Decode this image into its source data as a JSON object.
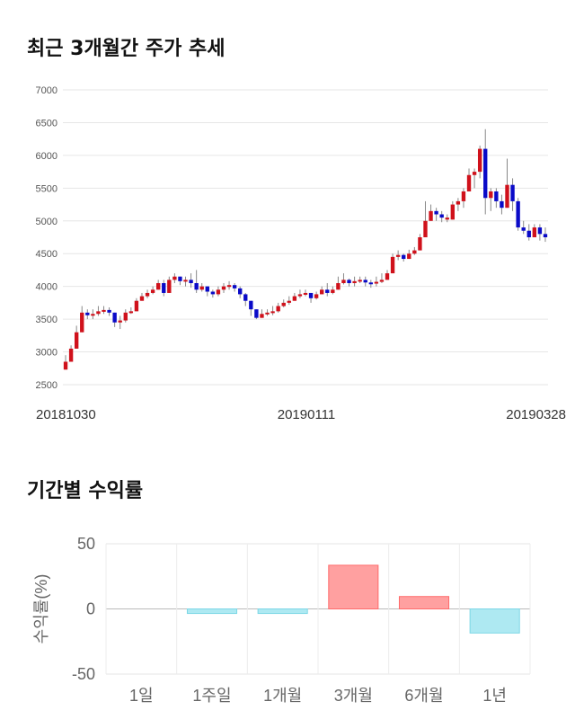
{
  "sections": {
    "price_trend_title": "최근 3개월간 주가 추세",
    "returns_title": "기간별 수익률"
  },
  "chart_data": [
    {
      "type": "candlestick",
      "title": "최근 3개월간 주가 추세",
      "ylim": [
        2500,
        7000
      ],
      "y_ticks": [
        7000,
        6500,
        6000,
        5500,
        5000,
        4500,
        4000,
        3500,
        3000,
        2500
      ],
      "x_labels": [
        "20181030",
        "20190111",
        "20190328"
      ],
      "grid": true,
      "colors": {
        "up": "#d0111b",
        "down": "#0a0ac8",
        "wick": "#888888",
        "grid": "#e6e6e6"
      },
      "close": [
        2850,
        3050,
        3300,
        3600,
        3560,
        3580,
        3620,
        3640,
        3600,
        3450,
        3480,
        3600,
        3620,
        3780,
        3850,
        3900,
        3950,
        4050,
        3900,
        4100,
        4150,
        4080,
        4100,
        4050,
        3950,
        4000,
        3920,
        3880,
        3950,
        4000,
        4020,
        3970,
        3880,
        3780,
        3650,
        3520,
        3580,
        3600,
        3620,
        3700,
        3750,
        3780,
        3850,
        3880,
        3900,
        3820,
        3880,
        3950,
        3900,
        3950,
        4050,
        4100,
        4050,
        4080,
        4100,
        4060,
        4050,
        4070,
        4100,
        4200,
        4450,
        4480,
        4420,
        4500,
        4550,
        4750,
        5000,
        5150,
        5100,
        5050,
        5020,
        5250,
        5300,
        5450,
        5700,
        5750,
        6100,
        5350,
        5450,
        5300,
        5200,
        5550,
        5300,
        4900,
        4850,
        4750,
        4900,
        4800,
        4750
      ],
      "up": [
        true,
        true,
        true,
        true,
        false,
        true,
        true,
        true,
        false,
        false,
        true,
        true,
        true,
        true,
        true,
        true,
        true,
        true,
        false,
        true,
        true,
        false,
        true,
        false,
        false,
        true,
        false,
        false,
        true,
        true,
        true,
        false,
        false,
        false,
        false,
        false,
        true,
        true,
        true,
        true,
        true,
        true,
        true,
        true,
        true,
        false,
        true,
        true,
        false,
        true,
        true,
        true,
        false,
        true,
        true,
        false,
        false,
        true,
        true,
        true,
        true,
        true,
        false,
        true,
        true,
        true,
        true,
        true,
        false,
        false,
        true,
        true,
        true,
        true,
        true,
        true,
        true,
        false,
        true,
        false,
        false,
        true,
        false,
        false,
        false,
        false,
        true,
        false,
        false
      ],
      "wick_high": [
        2950,
        3100,
        3400,
        3700,
        3650,
        3650,
        3700,
        3700,
        3680,
        3600,
        3550,
        3650,
        3680,
        3820,
        3900,
        3950,
        4000,
        4100,
        4100,
        4150,
        4200,
        4150,
        4150,
        4200,
        4250,
        4050,
        4000,
        3950,
        4000,
        4050,
        4080,
        4050,
        4000,
        3900,
        3750,
        3650,
        3650,
        3650,
        3700,
        3750,
        3800,
        3850,
        3900,
        3950,
        3950,
        3900,
        3920,
        4000,
        4050,
        4000,
        4150,
        4200,
        4120,
        4150,
        4150,
        4150,
        4100,
        4150,
        4200,
        4250,
        4500,
        4550,
        4500,
        4560,
        4600,
        4800,
        5300,
        5250,
        5200,
        5150,
        5100,
        5300,
        5350,
        5500,
        5800,
        5800,
        6150,
        6400,
        5500,
        5500,
        5400,
        5950,
        5650,
        5350,
        5000,
        4950,
        4950,
        4950,
        4900
      ],
      "wick_low": [
        2800,
        2950,
        3150,
        3400,
        3500,
        3500,
        3550,
        3580,
        3550,
        3380,
        3350,
        3450,
        3580,
        3700,
        3780,
        3820,
        3880,
        3950,
        3850,
        4000,
        4050,
        4020,
        4000,
        3980,
        3900,
        3920,
        3850,
        3830,
        3850,
        3900,
        3950,
        3920,
        3820,
        3700,
        3550,
        3500,
        3520,
        3550,
        3560,
        3600,
        3680,
        3720,
        3780,
        3820,
        3850,
        3750,
        3800,
        3880,
        3850,
        3880,
        3950,
        4030,
        4000,
        4000,
        4050,
        4000,
        3980,
        4000,
        4050,
        4150,
        4250,
        4400,
        4380,
        4420,
        4480,
        4550,
        4800,
        5000,
        5000,
        4980,
        4980,
        5050,
        5150,
        5200,
        5450,
        5500,
        5650,
        5100,
        5150,
        5200,
        5100,
        5200,
        5150,
        4850,
        4800,
        4700,
        4750,
        4700,
        4680
      ]
    },
    {
      "type": "bar",
      "title": "기간별 수익률",
      "categories": [
        "1일",
        "1주일",
        "1개월",
        "3개월",
        "6개월",
        "1년"
      ],
      "values": [
        0,
        -3.5,
        -3.5,
        33.5,
        9.5,
        -18.5
      ],
      "ylabel": "수익률(%)",
      "ylim": [
        -50,
        50
      ],
      "y_ticks": [
        50,
        0,
        -50
      ],
      "grid": true,
      "colors": {
        "positive": "#ffa0a0",
        "positive_edge": "#ff6b6b",
        "negative": "#aee9f2",
        "negative_edge": "#7dd7e6"
      }
    }
  ]
}
